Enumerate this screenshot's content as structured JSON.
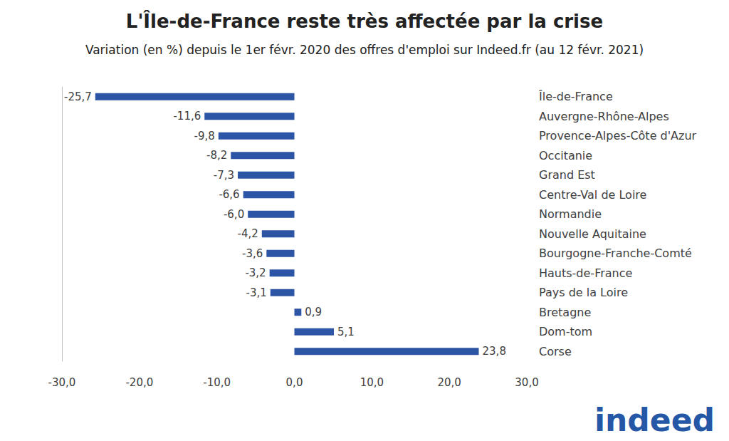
{
  "chart_data": {
    "type": "bar",
    "orientation": "horizontal",
    "title": "L'Île-de-France reste très affectée par la crise",
    "subtitle": "Variation (en %) depuis le 1er févr. 2020 des offres d'emploi sur Indeed.fr (au 12 févr. 2021)",
    "annotations": [
      "indeed"
    ],
    "categories": [
      "Île-de-France",
      "Auvergne-Rhône-Alpes",
      "Provence-Alpes-Côte d'Azur",
      "Occitanie",
      "Grand Est",
      "Centre-Val de Loire",
      "Normandie",
      "Nouvelle Aquitaine",
      "Bourgogne-Franche-Comté",
      "Hauts-de-France",
      "Pays de la Loire",
      "Bretagne",
      "Dom-tom",
      "Corse"
    ],
    "values": [
      -25.7,
      -11.6,
      -9.8,
      -8.2,
      -7.3,
      -6.6,
      -6.0,
      -4.2,
      -3.6,
      -3.2,
      -3.1,
      0.9,
      5.1,
      23.8
    ],
    "value_labels": [
      "-25,7",
      "-11,6",
      "-9,8",
      "-8,2",
      "-7,3",
      "-6,6",
      "-6,0",
      "-4,2",
      "-3,6",
      "-3,2",
      "-3,1",
      "0,9",
      "5,1",
      "23,8"
    ],
    "color": "#2d55a5",
    "xlim": [
      -30,
      30
    ],
    "xticks": [
      {
        "value": -30,
        "label": "-30,0"
      },
      {
        "value": -20,
        "label": "-20,0"
      },
      {
        "value": -10,
        "label": "-10,0"
      },
      {
        "value": 0,
        "label": "0,0"
      },
      {
        "value": 10,
        "label": "10,0"
      },
      {
        "value": 20,
        "label": "20,0"
      },
      {
        "value": 30,
        "label": "30,0"
      }
    ],
    "data_labels": true,
    "grid": false
  }
}
